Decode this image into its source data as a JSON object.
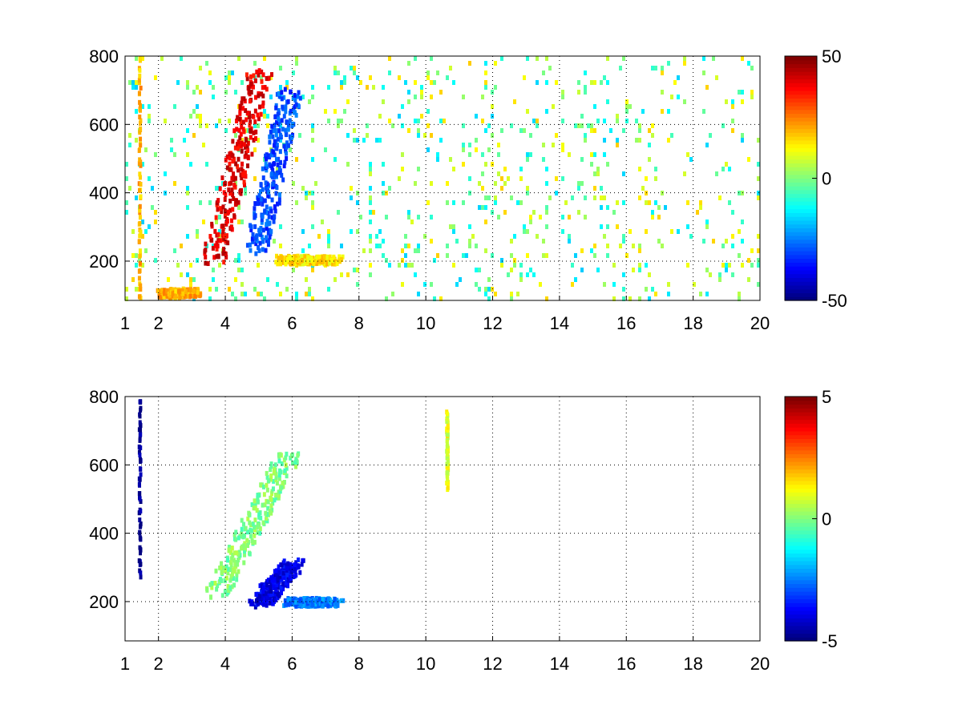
{
  "figure": {
    "background": "#ffffff"
  },
  "chart_data": [
    {
      "type": "heatmap",
      "title": "",
      "xlabel": "",
      "ylabel": "",
      "xlim": [
        1,
        20
      ],
      "ylim": [
        85,
        800
      ],
      "x_ticks": [
        1,
        2,
        4,
        6,
        8,
        10,
        12,
        14,
        16,
        18,
        20
      ],
      "y_ticks": [
        200,
        400,
        600,
        800
      ],
      "grid": true,
      "colorbar": {
        "range": [
          -50,
          50
        ],
        "ticks": [
          -50,
          0,
          50
        ],
        "colormap": "jet"
      },
      "features": [
        {
          "label": "diagonal positive ridge",
          "x_start": 3.6,
          "y_start": 210,
          "x_end": 5.0,
          "y_end": 760,
          "value": 40
        },
        {
          "label": "negative band",
          "x_start": 4.9,
          "y_start": 240,
          "x_end": 5.9,
          "y_end": 700,
          "value": -30
        },
        {
          "label": "horizontal band",
          "x_start": 5.8,
          "y_start": 210,
          "x_end": 7.2,
          "y_end": 210,
          "value": 15
        },
        {
          "label": "low-frequency streak",
          "x_start": 2.2,
          "y_start": 110,
          "x_end": 2.9,
          "y_end": 115,
          "value": 20
        },
        {
          "label": "vertical line",
          "x_start": 1.4,
          "y_start": 85,
          "x_end": 1.4,
          "y_end": 800,
          "value": 20
        }
      ]
    },
    {
      "type": "heatmap",
      "title": "",
      "xlabel": "",
      "ylabel": "",
      "xlim": [
        1,
        20
      ],
      "ylim": [
        85,
        800
      ],
      "x_ticks": [
        1,
        2,
        4,
        6,
        8,
        10,
        12,
        14,
        16,
        18,
        20
      ],
      "y_ticks": [
        200,
        400,
        600,
        800
      ],
      "grid": true,
      "colorbar": {
        "range": [
          -5,
          5
        ],
        "ticks": [
          -5,
          0,
          5
        ],
        "colormap": "jet"
      },
      "features": [
        {
          "label": "diffuse patch",
          "x_start": 3.7,
          "y_start": 230,
          "x_end": 5.9,
          "y_end": 640,
          "value": 0
        },
        {
          "label": "negative blob",
          "x_start": 5.0,
          "y_start": 200,
          "x_end": 6.0,
          "y_end": 320,
          "value": -4
        },
        {
          "label": "horizontal band",
          "x_start": 6.0,
          "y_start": 205,
          "x_end": 7.2,
          "y_end": 205,
          "value": -2.5
        },
        {
          "label": "vertical line",
          "x_start": 1.4,
          "y_start": 285,
          "x_end": 1.4,
          "y_end": 800,
          "value": -5
        },
        {
          "label": "vertical line",
          "x_start": 10.6,
          "y_start": 540,
          "x_end": 10.6,
          "y_end": 760,
          "value": 1
        }
      ]
    }
  ]
}
